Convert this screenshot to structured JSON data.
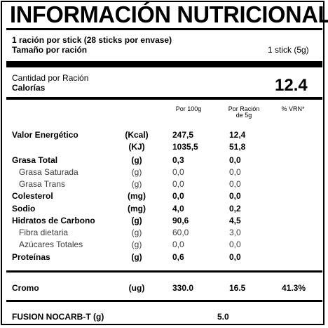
{
  "title": "INFORMACIÓN NUTRICIONAL",
  "serving": {
    "line1": "1 ración por stick (28 sticks por envase)",
    "size_label": "Tamaño por ración",
    "size_value": "1 stick (5g)"
  },
  "calories": {
    "amount_label": "Cantidad por Ración",
    "label": "Calorías",
    "value": "12.4"
  },
  "columns": {
    "per100": "Por 100g",
    "perserving_l1": "Por Ración",
    "perserving_l2": "de 5g",
    "vrn": "% VRN*"
  },
  "rows": [
    {
      "label": "Valor Energético",
      "unit": "(Kcal)",
      "per100": "247,5",
      "perserving": "12,4",
      "bold": true
    },
    {
      "label": "",
      "unit": "(KJ)",
      "per100": "1035,5",
      "perserving": "51,8",
      "bold": true
    },
    {
      "label": "Grasa Total",
      "unit": "(g)",
      "per100": "0,3",
      "perserving": "0,0",
      "bold": true
    },
    {
      "label": "Grasa Saturada",
      "unit": "(g)",
      "per100": "0,0",
      "perserving": "0,0",
      "bold": false
    },
    {
      "label": "Grasa Trans",
      "unit": "(g)",
      "per100": "0,0",
      "perserving": "0,0",
      "bold": false
    },
    {
      "label": "Colesterol",
      "unit": "(mg)",
      "per100": "0,0",
      "perserving": "0,0",
      "bold": true
    },
    {
      "label": "Sodio",
      "unit": "(mg)",
      "per100": "4,0",
      "perserving": "0,2",
      "bold": true
    },
    {
      "label": "Hidratos de Carbono",
      "unit": "(g)",
      "per100": "90,6",
      "perserving": "4,5",
      "bold": true
    },
    {
      "label": "Fibra dietaria",
      "unit": "(g)",
      "per100": "60,0",
      "perserving": "3,0",
      "bold": false
    },
    {
      "label": "Azúcares Totales",
      "unit": "(g)",
      "per100": "0,0",
      "perserving": "0,0",
      "bold": false
    },
    {
      "label": "Proteínas",
      "unit": "(g)",
      "per100": "0,6",
      "perserving": "0,0",
      "bold": true
    }
  ],
  "cromo": {
    "label": "Cromo",
    "unit": "(ug)",
    "per100": "330.0",
    "perserving": "16.5",
    "vrn": "41.3%"
  },
  "fusion": {
    "label": "FUSION NOCARB-T (g)",
    "value": "5.0"
  }
}
